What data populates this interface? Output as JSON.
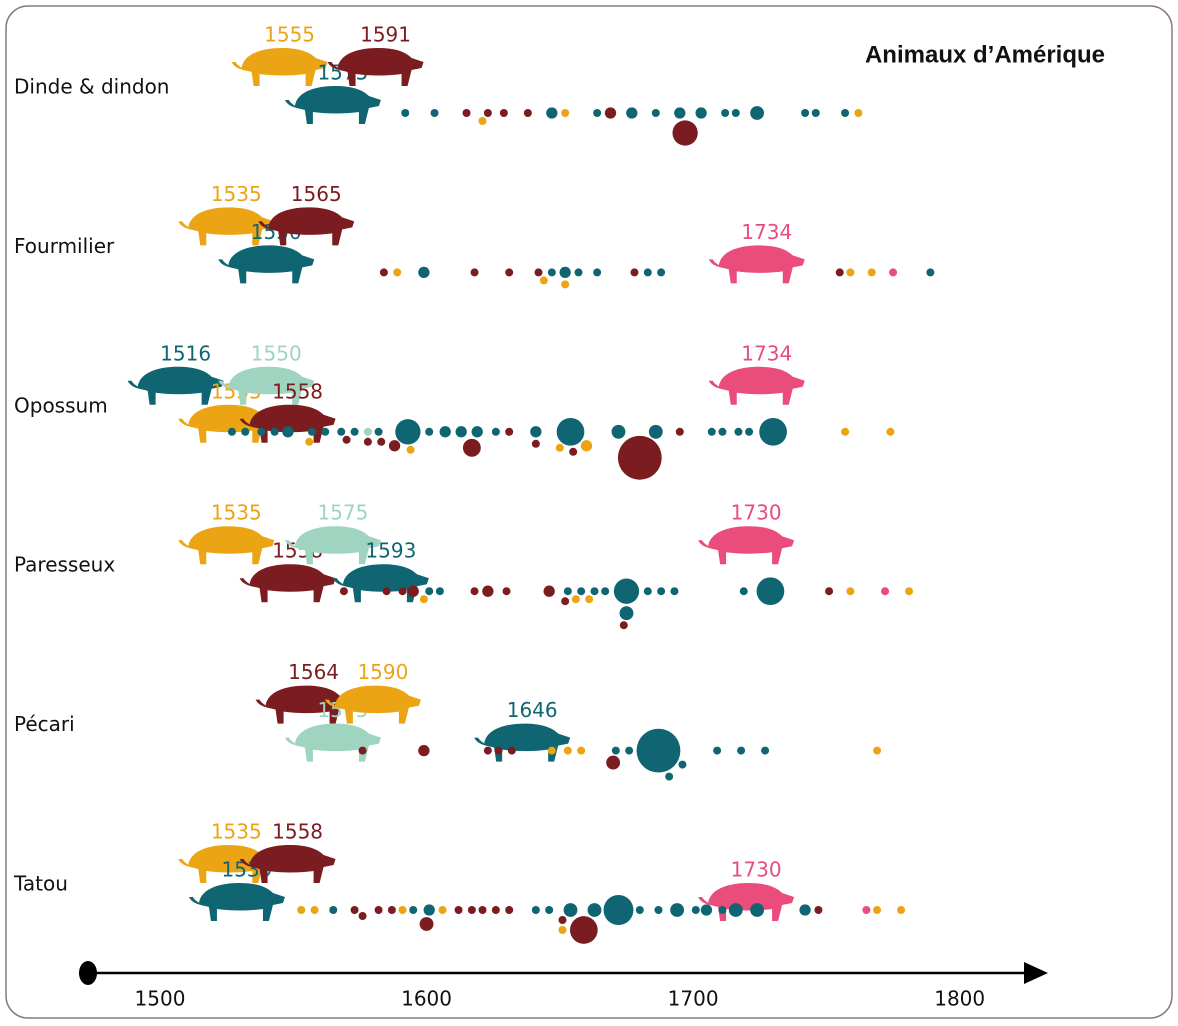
{
  "chart_data": {
    "type": "timeline",
    "title": "Animaux d’Amérique",
    "xlim": [
      1473,
      1832
    ],
    "xticks": [
      1500,
      1600,
      1700,
      1800
    ],
    "grid": false,
    "rows": [
      {
        "name": "Dinde & dindon",
        "animals": [
          {
            "year": 1555,
            "color": "#eba413"
          },
          {
            "year": 1575,
            "color": "#106572"
          },
          {
            "year": 1591,
            "color": "#7a1c20"
          }
        ],
        "series": [
          {
            "color": "#106572",
            "x": [
              1592,
              1603,
              1647,
              1664,
              1677,
              1686,
              1695,
              1703,
              1712,
              1716,
              1724,
              1742,
              1746,
              1757
            ],
            "sizes": [
              1,
              1,
              2,
              1,
              2,
              1,
              2,
              2,
              1,
              1,
              3,
              1,
              1,
              1
            ]
          },
          {
            "color": "#7a1c20",
            "x": [
              1615,
              1623,
              1629,
              1638,
              1669,
              1697
            ],
            "sizes": [
              1,
              1,
              1,
              1,
              2,
              10
            ]
          },
          {
            "color": "#eba413",
            "x": [
              1621,
              1652,
              1762
            ],
            "sizes": [
              1,
              1,
              1
            ]
          }
        ]
      },
      {
        "name": "Fourmilier",
        "animals": [
          {
            "year": 1535,
            "color": "#eba413"
          },
          {
            "year": 1550,
            "color": "#106572"
          },
          {
            "year": 1565,
            "color": "#7a1c20"
          },
          {
            "year": 1734,
            "color": "#ea4c7b"
          }
        ],
        "series": [
          {
            "color": "#106572",
            "x": [
              1599,
              1647,
              1652,
              1657,
              1664,
              1683,
              1688,
              1789
            ],
            "sizes": [
              2,
              1,
              2,
              1,
              1,
              1,
              1,
              1
            ]
          },
          {
            "color": "#7a1c20",
            "x": [
              1584,
              1618,
              1631,
              1642,
              1678,
              1755
            ],
            "sizes": [
              1,
              1,
              1,
              1,
              1,
              1
            ]
          },
          {
            "color": "#eba413",
            "x": [
              1589,
              1644,
              1652,
              1759,
              1767
            ],
            "sizes": [
              1,
              1,
              1,
              1,
              1
            ]
          },
          {
            "color": "#ea4c7b",
            "x": [
              1775
            ],
            "sizes": [
              1
            ]
          }
        ]
      },
      {
        "name": "Opossum",
        "animals": [
          {
            "year": 1516,
            "color": "#106572"
          },
          {
            "year": 1535,
            "color": "#eba413"
          },
          {
            "year": 1550,
            "color": "#9fd4c0"
          },
          {
            "year": 1558,
            "color": "#7a1c20"
          },
          {
            "year": 1734,
            "color": "#ea4c7b"
          }
        ],
        "series": [
          {
            "color": "#106572",
            "x": [
              1527,
              1532,
              1538,
              1543,
              1548,
              1557,
              1562,
              1568,
              1573,
              1582,
              1593,
              1601,
              1607,
              1613,
              1619,
              1626,
              1641,
              1654,
              1672,
              1686,
              1707,
              1711,
              1717,
              1721,
              1730
            ],
            "sizes": [
              1,
              1,
              1,
              1,
              2,
              1,
              1,
              1,
              1,
              1,
              10,
              1,
              2,
              2,
              2,
              1,
              2,
              12,
              3,
              3,
              1,
              1,
              1,
              1,
              12
            ]
          },
          {
            "color": "#9fd4c0",
            "x": [
              1578
            ],
            "sizes": [
              1
            ]
          },
          {
            "color": "#7a1c20",
            "x": [
              1570,
              1578,
              1583,
              1588,
              1617,
              1631,
              1641,
              1655,
              1680,
              1695
            ],
            "sizes": [
              1,
              1,
              1,
              2,
              5,
              1,
              1,
              1,
              30,
              1
            ]
          },
          {
            "color": "#eba413",
            "x": [
              1556,
              1594,
              1650,
              1660,
              1757,
              1774
            ],
            "sizes": [
              1,
              1,
              1,
              2,
              1,
              1
            ]
          }
        ]
      },
      {
        "name": "Paresseux",
        "animals": [
          {
            "year": 1535,
            "color": "#eba413"
          },
          {
            "year": 1558,
            "color": "#7a1c20"
          },
          {
            "year": 1575,
            "color": "#9fd4c0"
          },
          {
            "year": 1593,
            "color": "#106572"
          },
          {
            "year": 1730,
            "color": "#ea4c7b"
          }
        ],
        "series": [
          {
            "color": "#106572",
            "x": [
              1601,
              1605,
              1653,
              1658,
              1663,
              1667,
              1675,
              1675,
              1683,
              1688,
              1693,
              1719,
              1729
            ],
            "sizes": [
              1,
              1,
              1,
              1,
              1,
              1,
              10,
              3,
              1,
              1,
              1,
              1,
              12
            ]
          },
          {
            "color": "#7a1c20",
            "x": [
              1569,
              1585,
              1591,
              1595,
              1618,
              1623,
              1630,
              1646,
              1652,
              1674,
              1751
            ],
            "sizes": [
              1,
              1,
              1,
              2,
              1,
              2,
              1,
              2,
              1,
              1,
              1
            ]
          },
          {
            "color": "#eba413",
            "x": [
              1599,
              1656,
              1661,
              1759,
              1781
            ],
            "sizes": [
              1,
              1,
              1,
              1,
              1
            ]
          },
          {
            "color": "#ea4c7b",
            "x": [
              1772
            ],
            "sizes": [
              1
            ]
          }
        ]
      },
      {
        "name": "Pécari",
        "animals": [
          {
            "year": 1564,
            "color": "#7a1c20"
          },
          {
            "year": 1575,
            "color": "#9fd4c0"
          },
          {
            "year": 1590,
            "color": "#eba413"
          },
          {
            "year": 1646,
            "color": "#106572"
          }
        ],
        "series": [
          {
            "color": "#106572",
            "x": [
              1671,
              1676,
              1687,
              1691,
              1696,
              1709,
              1718,
              1727
            ],
            "sizes": [
              1,
              1,
              30,
              1,
              1,
              1,
              1,
              1
            ]
          },
          {
            "color": "#7a1c20",
            "x": [
              1576,
              1599,
              1623,
              1627,
              1632,
              1670
            ],
            "sizes": [
              1,
              2,
              1,
              1,
              1,
              3
            ]
          },
          {
            "color": "#eba413",
            "x": [
              1647,
              1653,
              1658,
              1769
            ],
            "sizes": [
              1,
              1,
              1,
              1
            ]
          }
        ]
      },
      {
        "name": "Tatou",
        "animals": [
          {
            "year": 1535,
            "color": "#eba413"
          },
          {
            "year": 1539,
            "color": "#106572"
          },
          {
            "year": 1558,
            "color": "#7a1c20"
          },
          {
            "year": 1730,
            "color": "#ea4c7b"
          }
        ],
        "series": [
          {
            "color": "#106572",
            "x": [
              1565,
              1595,
              1601,
              1641,
              1646,
              1654,
              1663,
              1672,
              1680,
              1687,
              1694,
              1701,
              1705,
              1711,
              1716,
              1724,
              1742
            ],
            "sizes": [
              1,
              1,
              2,
              1,
              1,
              3,
              3,
              14,
              1,
              1,
              3,
              1,
              2,
              1,
              3,
              3,
              2
            ]
          },
          {
            "color": "#7a1c20",
            "x": [
              1573,
              1576,
              1582,
              1587,
              1600,
              1612,
              1617,
              1621,
              1626,
              1631,
              1651,
              1659,
              1747
            ],
            "sizes": [
              1,
              1,
              1,
              1,
              3,
              1,
              1,
              1,
              1,
              1,
              1,
              12,
              1
            ]
          },
          {
            "color": "#eba413",
            "x": [
              1553,
              1558,
              1591,
              1606,
              1651,
              1769,
              1778
            ],
            "sizes": [
              1,
              1,
              1,
              1,
              1,
              1,
              1
            ]
          },
          {
            "color": "#ea4c7b",
            "x": [
              1765
            ],
            "sizes": [
              1
            ]
          }
        ]
      }
    ]
  }
}
